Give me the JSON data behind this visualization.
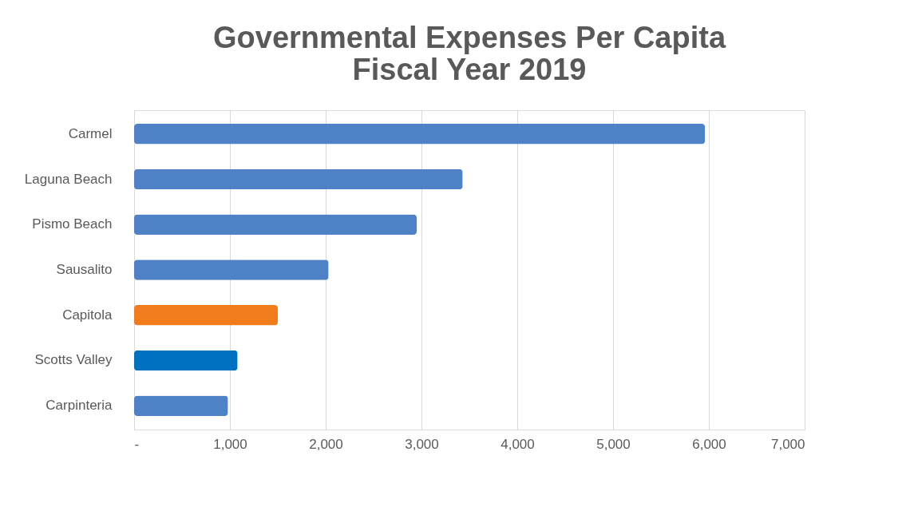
{
  "chart_data": {
    "type": "bar",
    "orientation": "horizontal",
    "title": [
      "Governmental Expenses Per Capita",
      "Fiscal Year 2019"
    ],
    "categories": [
      "Carmel",
      "Laguna Beach",
      "Pismo Beach",
      "Sausalito",
      "Capitola",
      "Scotts Valley",
      "Carpinteria"
    ],
    "values": [
      5960,
      3430,
      2950,
      2030,
      1500,
      1080,
      980
    ],
    "colors": [
      "#4f81c7",
      "#4f81c7",
      "#4f81c7",
      "#4f81c7",
      "#f07c1b",
      "#0070c0",
      "#4f81c7"
    ],
    "xlim": [
      0,
      7000
    ],
    "xticks": [
      {
        "value": 0,
        "label": "-"
      },
      {
        "value": 1000,
        "label": "1,000"
      },
      {
        "value": 2000,
        "label": "2,000"
      },
      {
        "value": 3000,
        "label": "3,000"
      },
      {
        "value": 4000,
        "label": "4,000"
      },
      {
        "value": 5000,
        "label": "5,000"
      },
      {
        "value": 6000,
        "label": "6,000"
      },
      {
        "value": 7000,
        "label": "7,000"
      }
    ],
    "grid": "x"
  }
}
